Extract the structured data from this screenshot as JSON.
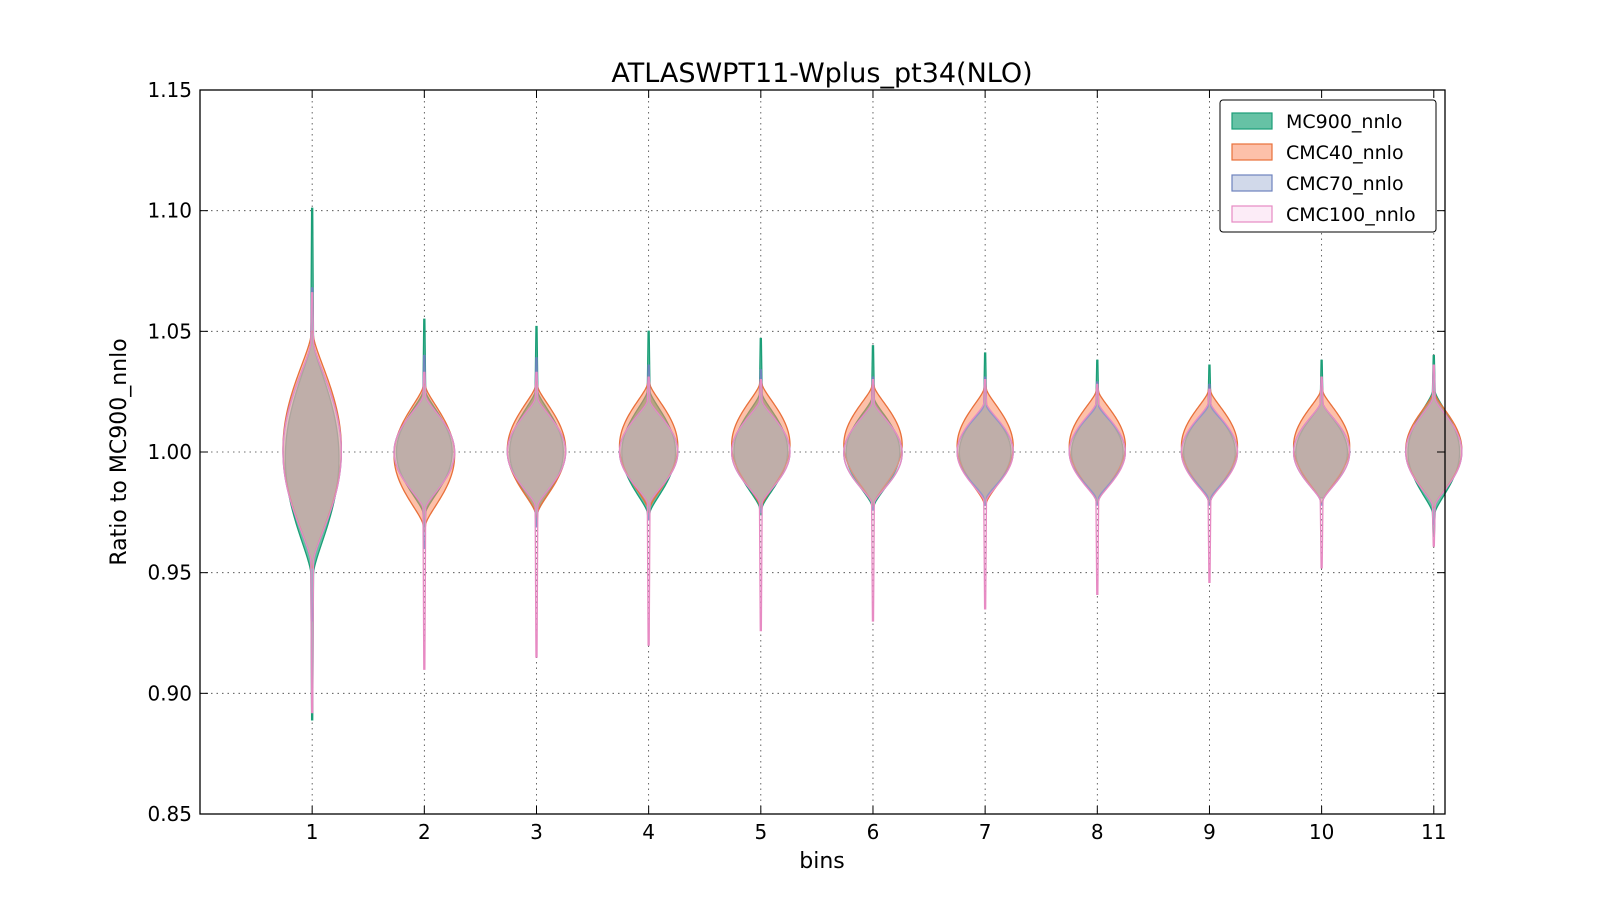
{
  "chart_data": {
    "type": "violin",
    "title": "ATLASWPT11-Wplus_pt34(NLO)",
    "xlabel": "bins",
    "ylabel": "Ratio to MC900_nnlo",
    "ylim": [
      0.85,
      1.15
    ],
    "xlim": [
      0,
      11.1
    ],
    "yticks": [
      "0.85",
      "0.90",
      "0.95",
      "1.00",
      "1.05",
      "1.10",
      "1.15"
    ],
    "categories": [
      "1",
      "2",
      "3",
      "4",
      "5",
      "6",
      "7",
      "8",
      "9",
      "10",
      "11"
    ],
    "grid": true,
    "legend_position": "top-right",
    "series": [
      {
        "name": "MC900_nnlo",
        "color": "#66c2a5",
        "edge": "#1b9e77",
        "alpha": 1.0,
        "ranges": [
          [
            0.889,
            1.101
          ],
          [
            0.969,
            1.055
          ],
          [
            0.97,
            1.052
          ],
          [
            0.972,
            1.05
          ],
          [
            0.974,
            1.047
          ],
          [
            0.976,
            1.044
          ],
          [
            0.978,
            1.041
          ],
          [
            0.979,
            1.038
          ],
          [
            0.98,
            1.036
          ],
          [
            0.981,
            1.038
          ],
          [
            0.965,
            1.04
          ]
        ],
        "cores": [
          [
            0.95,
            1.045
          ],
          [
            0.975,
            1.025
          ],
          [
            0.975,
            1.025
          ],
          [
            0.975,
            1.025
          ],
          [
            0.977,
            1.024
          ],
          [
            0.978,
            1.022
          ],
          [
            0.98,
            1.02
          ],
          [
            0.98,
            1.02
          ],
          [
            0.98,
            1.02
          ],
          [
            0.98,
            1.02
          ],
          [
            0.975,
            1.025
          ]
        ]
      },
      {
        "name": "CMC40_nnlo",
        "color": "#fc8d62",
        "edge": "#e8703a",
        "alpha": 0.55,
        "ranges": [
          [
            0.952,
            1.05
          ],
          [
            0.967,
            1.028
          ],
          [
            0.973,
            1.029
          ],
          [
            0.975,
            1.03
          ],
          [
            0.977,
            1.03
          ],
          [
            0.978,
            1.029
          ],
          [
            0.978,
            1.028
          ],
          [
            0.979,
            1.027
          ],
          [
            0.979,
            1.027
          ],
          [
            0.979,
            1.027
          ],
          [
            0.977,
            1.025
          ]
        ],
        "cores": [
          [
            0.955,
            1.048
          ],
          [
            0.97,
            1.027
          ],
          [
            0.975,
            1.027
          ],
          [
            0.977,
            1.028
          ],
          [
            0.978,
            1.028
          ],
          [
            0.979,
            1.027
          ],
          [
            0.979,
            1.026
          ],
          [
            0.98,
            1.025
          ],
          [
            0.98,
            1.025
          ],
          [
            0.98,
            1.025
          ],
          [
            0.978,
            1.024
          ]
        ]
      },
      {
        "name": "CMC70_nnlo",
        "color": "#8da0cb",
        "edge": "#6d83bd",
        "alpha": 0.25,
        "ranges": [
          [
            0.93,
            1.068
          ],
          [
            0.96,
            1.04
          ],
          [
            0.969,
            1.039
          ],
          [
            0.972,
            1.036
          ],
          [
            0.975,
            1.034
          ],
          [
            0.976,
            1.031
          ],
          [
            0.978,
            1.031
          ],
          [
            0.978,
            1.029
          ],
          [
            0.978,
            1.028
          ],
          [
            0.978,
            1.03
          ],
          [
            0.97,
            1.034
          ]
        ],
        "cores": [
          [
            0.955,
            1.045
          ],
          [
            0.977,
            1.023
          ],
          [
            0.978,
            1.022
          ],
          [
            0.979,
            1.021
          ],
          [
            0.979,
            1.021
          ],
          [
            0.979,
            1.02
          ],
          [
            0.981,
            1.019
          ],
          [
            0.981,
            1.019
          ],
          [
            0.981,
            1.019
          ],
          [
            0.98,
            1.02
          ],
          [
            0.978,
            1.022
          ]
        ]
      },
      {
        "name": "CMC100_nnlo",
        "color": "#f8d0ec",
        "edge": "#e78ac3",
        "alpha": 0.25,
        "ranges": [
          [
            0.892,
            1.066
          ],
          [
            0.91,
            1.033
          ],
          [
            0.915,
            1.033
          ],
          [
            0.92,
            1.031
          ],
          [
            0.926,
            1.03
          ],
          [
            0.93,
            1.03
          ],
          [
            0.935,
            1.03
          ],
          [
            0.941,
            1.028
          ],
          [
            0.946,
            1.026
          ],
          [
            0.952,
            1.031
          ],
          [
            0.961,
            1.036
          ]
        ],
        "cores": [
          [
            0.955,
            1.045
          ],
          [
            0.977,
            1.023
          ],
          [
            0.978,
            1.022
          ],
          [
            0.979,
            1.021
          ],
          [
            0.979,
            1.021
          ],
          [
            0.979,
            1.02
          ],
          [
            0.98,
            1.02
          ],
          [
            0.98,
            1.02
          ],
          [
            0.98,
            1.02
          ],
          [
            0.98,
            1.02
          ],
          [
            0.978,
            1.022
          ]
        ]
      }
    ]
  }
}
